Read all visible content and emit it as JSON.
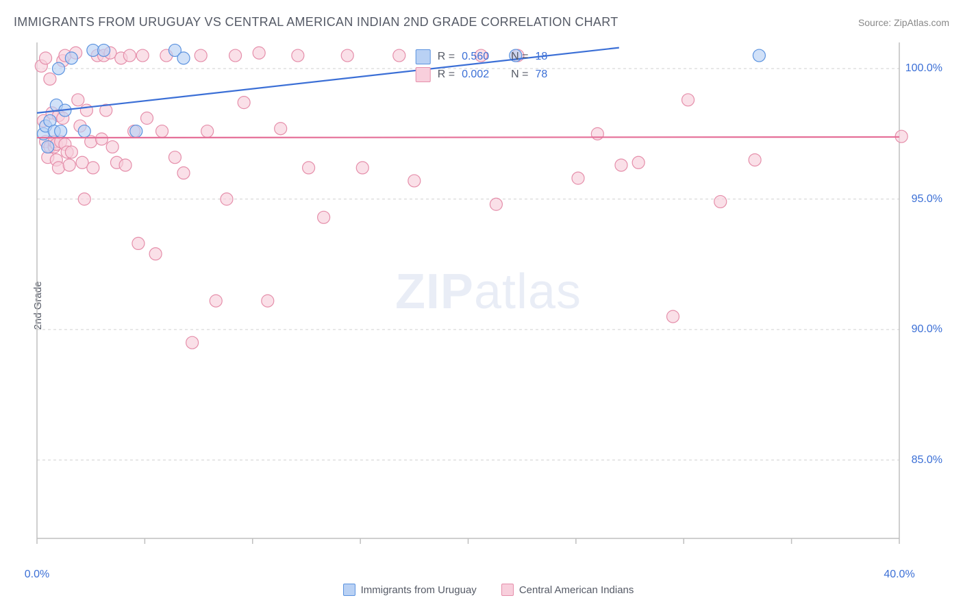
{
  "title": "IMMIGRANTS FROM URUGUAY VS CENTRAL AMERICAN INDIAN 2ND GRADE CORRELATION CHART",
  "source_label": "Source:",
  "source_name": "ZipAtlas.com",
  "ylabel": "2nd Grade",
  "watermark_a": "ZIP",
  "watermark_b": "atlas",
  "chart": {
    "type": "scatter",
    "xlim": [
      0,
      40
    ],
    "ylim": [
      82,
      101
    ],
    "y_ticks": [
      85.0,
      90.0,
      95.0,
      100.0
    ],
    "y_tick_labels": [
      "85.0%",
      "90.0%",
      "95.0%",
      "100.0%"
    ],
    "x_ticks": [
      0,
      40
    ],
    "x_tick_labels": [
      "0.0%",
      "40.0%"
    ],
    "x_minor_tick_step": 5,
    "background_color": "#ffffff",
    "grid_color": "#d0d0d0",
    "axis_color": "#bfbfbf",
    "marker_radius": 9,
    "marker_border_width": 1.2,
    "line_width": 2.2,
    "series": [
      {
        "key": "uruguay",
        "label": "Immigrants from Uruguay",
        "fill": "#b9d1f4",
        "border": "#5a92df",
        "line_color": "#3b6fd6",
        "r": 0.56,
        "n": 18,
        "regression": {
          "x1": 0,
          "y1": 98.3,
          "x2": 27,
          "y2": 100.8
        },
        "points": [
          [
            0.3,
            97.5
          ],
          [
            0.4,
            97.8
          ],
          [
            0.5,
            97.0
          ],
          [
            0.6,
            98.0
          ],
          [
            0.8,
            97.6
          ],
          [
            0.9,
            98.6
          ],
          [
            1.0,
            100.0
          ],
          [
            1.1,
            97.6
          ],
          [
            1.3,
            98.4
          ],
          [
            1.6,
            100.4
          ],
          [
            2.2,
            97.6
          ],
          [
            2.6,
            100.7
          ],
          [
            3.1,
            100.7
          ],
          [
            4.6,
            97.6
          ],
          [
            6.4,
            100.7
          ],
          [
            6.8,
            100.4
          ],
          [
            22.2,
            100.5
          ],
          [
            33.5,
            100.5
          ]
        ]
      },
      {
        "key": "cai",
        "label": "Central American Indians",
        "fill": "#f8cfdc",
        "border": "#e58eaa",
        "line_color": "#e56f98",
        "r": 0.002,
        "n": 78,
        "regression": {
          "x1": 0,
          "y1": 97.35,
          "x2": 40,
          "y2": 97.38
        },
        "points": [
          [
            0.2,
            100.1
          ],
          [
            0.3,
            98.0
          ],
          [
            0.4,
            97.2
          ],
          [
            0.4,
            100.4
          ],
          [
            0.5,
            96.6
          ],
          [
            0.6,
            97.0
          ],
          [
            0.6,
            99.6
          ],
          [
            0.7,
            98.3
          ],
          [
            0.8,
            97.0
          ],
          [
            0.8,
            97.2
          ],
          [
            0.9,
            97.1
          ],
          [
            0.9,
            96.5
          ],
          [
            1.0,
            98.2
          ],
          [
            1.0,
            96.2
          ],
          [
            1.1,
            97.2
          ],
          [
            1.2,
            100.3
          ],
          [
            1.2,
            98.1
          ],
          [
            1.3,
            97.1
          ],
          [
            1.3,
            100.5
          ],
          [
            1.4,
            96.8
          ],
          [
            1.5,
            96.3
          ],
          [
            1.6,
            96.8
          ],
          [
            1.8,
            100.6
          ],
          [
            1.9,
            98.8
          ],
          [
            2.0,
            97.8
          ],
          [
            2.1,
            96.4
          ],
          [
            2.2,
            95.0
          ],
          [
            2.3,
            98.4
          ],
          [
            2.5,
            97.2
          ],
          [
            2.6,
            96.2
          ],
          [
            2.8,
            100.5
          ],
          [
            3.0,
            97.3
          ],
          [
            3.1,
            100.5
          ],
          [
            3.2,
            98.4
          ],
          [
            3.4,
            100.6
          ],
          [
            3.5,
            97.0
          ],
          [
            3.7,
            96.4
          ],
          [
            3.9,
            100.4
          ],
          [
            4.1,
            96.3
          ],
          [
            4.3,
            100.5
          ],
          [
            4.5,
            97.6
          ],
          [
            4.7,
            93.3
          ],
          [
            4.9,
            100.5
          ],
          [
            5.1,
            98.1
          ],
          [
            5.5,
            92.9
          ],
          [
            5.8,
            97.6
          ],
          [
            6.0,
            100.5
          ],
          [
            6.4,
            96.6
          ],
          [
            6.8,
            96.0
          ],
          [
            7.2,
            89.5
          ],
          [
            7.6,
            100.5
          ],
          [
            7.9,
            97.6
          ],
          [
            8.3,
            91.1
          ],
          [
            8.8,
            95.0
          ],
          [
            9.2,
            100.5
          ],
          [
            9.6,
            98.7
          ],
          [
            10.3,
            100.6
          ],
          [
            10.7,
            91.1
          ],
          [
            11.3,
            97.7
          ],
          [
            12.1,
            100.5
          ],
          [
            12.6,
            96.2
          ],
          [
            13.3,
            94.3
          ],
          [
            14.4,
            100.5
          ],
          [
            15.1,
            96.2
          ],
          [
            16.8,
            100.5
          ],
          [
            17.5,
            95.7
          ],
          [
            20.6,
            100.5
          ],
          [
            21.3,
            94.8
          ],
          [
            22.3,
            100.5
          ],
          [
            25.1,
            95.8
          ],
          [
            26.0,
            97.5
          ],
          [
            27.1,
            96.3
          ],
          [
            27.9,
            96.4
          ],
          [
            29.5,
            90.5
          ],
          [
            30.2,
            98.8
          ],
          [
            31.7,
            94.9
          ],
          [
            33.3,
            96.5
          ],
          [
            40.1,
            97.4
          ]
        ]
      }
    ]
  },
  "top_legend": {
    "r_label": "R =",
    "n_label": "N ="
  },
  "bottom_legend_series": [
    "uruguay",
    "cai"
  ]
}
